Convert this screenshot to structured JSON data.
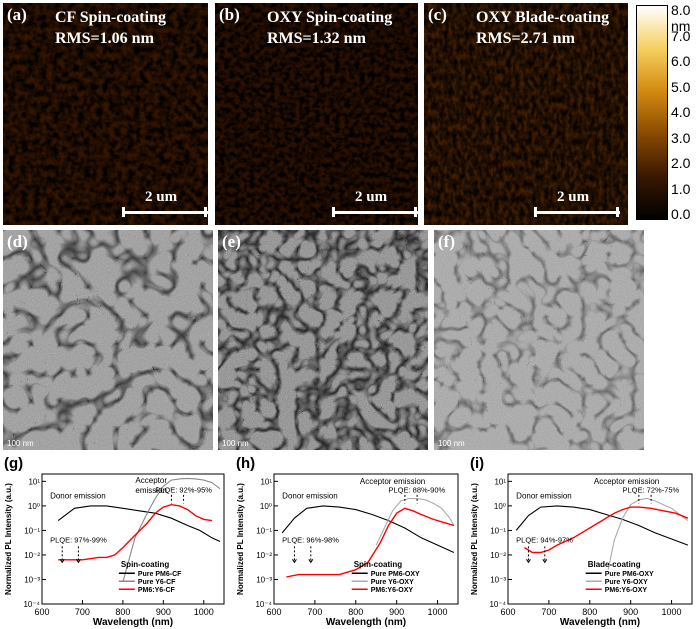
{
  "afm": [
    {
      "label": "(a)",
      "title": "CF Spin-coating",
      "rms": "RMS=1.06 nm",
      "scale": "2 um"
    },
    {
      "label": "(b)",
      "title": "OXY Spin-coating",
      "rms": "RMS=1.32 nm",
      "scale": "2 um"
    },
    {
      "label": "(c)",
      "title": "OXY Blade-coating",
      "rms": "RMS=2.71 nm",
      "scale": "2 um"
    }
  ],
  "colorbar": {
    "ticks": [
      "8.0 nm",
      "7.0",
      "6.0",
      "5.0",
      "4.0",
      "3.0",
      "2.0",
      "1.0",
      "0.0"
    ],
    "colors": [
      "#ffffff",
      "#f5d060",
      "#d48a10",
      "#8a4a00",
      "#3a1800",
      "#000000"
    ]
  },
  "tem": [
    {
      "label": "(d)",
      "scale": "100 nm"
    },
    {
      "label": "(e)",
      "scale": "100 nm"
    },
    {
      "label": "(f)",
      "scale": "100 nm"
    }
  ],
  "pl_axes": {
    "xlabel": "Wavelength (nm)",
    "ylabel": "Normalized PL Intensity (a.u.)"
  },
  "chart_data": [
    {
      "type": "line",
      "label": "(g)",
      "xlabel": "Wavelength (nm)",
      "ylabel": "Normalized PL Intensity (a.u.)",
      "xlim": [
        600,
        1050
      ],
      "ylim_log10": [
        -4,
        1.3
      ],
      "yscale": "log",
      "xticks": [
        "600",
        "700",
        "800",
        "900",
        "1000"
      ],
      "yticks": [
        "10⁻⁴",
        "10⁻³",
        "10⁻²",
        "10⁻¹",
        "10⁰",
        "10¹"
      ],
      "legend_title": "Spin-coating",
      "annotations": {
        "donor": "Donor emission",
        "acceptor": "Acceptor\nemission",
        "plqe_d": "PLQE: 97%-99%",
        "plqe_a": "PLQE: 92%-95%"
      },
      "series": [
        {
          "name": "Pure PM6-CF",
          "color": "#000000",
          "x": [
            640,
            680,
            720,
            760,
            800,
            840,
            880,
            920,
            960,
            990,
            1000,
            1020,
            1040
          ],
          "logy": [
            -0.6,
            -0.1,
            0.0,
            0.0,
            -0.1,
            -0.2,
            -0.3,
            -0.5,
            -0.8,
            -1.0,
            -1.1,
            -1.3,
            -1.45
          ]
        },
        {
          "name": "Pure Y6-CF",
          "color": "#888888",
          "x": [
            800,
            830,
            860,
            880,
            900,
            920,
            940,
            960,
            980,
            1000,
            1020,
            1040
          ],
          "logy": [
            -3.1,
            -1.3,
            -0.3,
            0.3,
            0.8,
            1.05,
            1.1,
            1.12,
            1.1,
            1.05,
            0.95,
            0.7
          ]
        },
        {
          "name": "PM6:Y6-CF",
          "color": "#ff0000",
          "x": [
            640,
            660,
            700,
            740,
            760,
            780,
            800,
            830,
            860,
            880,
            900,
            920,
            940,
            960,
            980,
            1000,
            1020
          ],
          "logy": [
            -2.2,
            -2.2,
            -2.2,
            -2.1,
            -2.1,
            -2.0,
            -1.7,
            -1.2,
            -0.7,
            -0.3,
            -0.05,
            0.05,
            0.0,
            -0.15,
            -0.4,
            -0.55,
            -0.6
          ]
        }
      ]
    },
    {
      "type": "line",
      "label": "(h)",
      "xlabel": "Wavelength (nm)",
      "ylabel": "Normalized PL Intensity (a.u.)",
      "xlim": [
        600,
        1050
      ],
      "ylim_log10": [
        -4,
        1.3
      ],
      "yscale": "log",
      "xticks": [
        "600",
        "700",
        "800",
        "900",
        "1000"
      ],
      "yticks": [
        "10⁻⁴",
        "10⁻³",
        "10⁻²",
        "10⁻¹",
        "10⁰",
        "10¹"
      ],
      "legend_title": "Spin-coating",
      "annotations": {
        "donor": "Donor emission",
        "acceptor": "Acceptor emission",
        "plqe_d": "PLQE: 96%-98%",
        "plqe_a": "PLQE: 88%-90%"
      },
      "series": [
        {
          "name": "Pure PM6-OXY",
          "color": "#000000",
          "x": [
            620,
            650,
            680,
            720,
            760,
            800,
            840,
            880,
            920,
            960,
            1000,
            1040
          ],
          "logy": [
            -1.1,
            -0.5,
            -0.1,
            0.0,
            -0.05,
            -0.15,
            -0.35,
            -0.6,
            -0.9,
            -1.3,
            -1.6,
            -1.9
          ]
        },
        {
          "name": "Pure Y6-OXY",
          "color": "#aaaaaa",
          "x": [
            850,
            870,
            890,
            910,
            930,
            950,
            970,
            990,
            1010,
            1030,
            1040
          ],
          "logy": [
            -1.6,
            -0.9,
            -0.2,
            0.2,
            0.3,
            0.3,
            0.25,
            0.1,
            -0.1,
            -0.5,
            -0.8
          ]
        },
        {
          "name": "PM6:Y6-OXY",
          "color": "#ff0000",
          "x": [
            630,
            660,
            700,
            760,
            800,
            830,
            860,
            880,
            900,
            920,
            940,
            960,
            990,
            1020,
            1040
          ],
          "logy": [
            -2.9,
            -2.8,
            -2.8,
            -2.8,
            -2.6,
            -2.3,
            -1.5,
            -0.8,
            -0.3,
            -0.1,
            -0.2,
            -0.35,
            -0.55,
            -0.7,
            -0.8
          ]
        }
      ]
    },
    {
      "type": "line",
      "label": "(i)",
      "xlabel": "Wavelength (nm)",
      "ylabel": "Normalized PL Intensity (a.u.)",
      "xlim": [
        600,
        1050
      ],
      "ylim_log10": [
        -4,
        1.3
      ],
      "yscale": "log",
      "xticks": [
        "600",
        "700",
        "800",
        "900",
        "1000"
      ],
      "yticks": [
        "10⁻⁴",
        "10⁻³",
        "10⁻²",
        "10⁻¹",
        "10⁰",
        "10¹"
      ],
      "legend_title": "Blade-coating",
      "annotations": {
        "donor": "Donor emission",
        "acceptor": "Acceptor emission",
        "plqe_d": "PLQE: 94%-97%",
        "plqe_a": "PLQE: 72%-75%"
      },
      "series": [
        {
          "name": "Pure PM6-OXY",
          "color": "#000000",
          "x": [
            620,
            650,
            680,
            720,
            760,
            800,
            840,
            880,
            920,
            960,
            1000,
            1040
          ],
          "logy": [
            -1.0,
            -0.4,
            -0.05,
            0.0,
            -0.05,
            -0.15,
            -0.35,
            -0.55,
            -0.8,
            -1.1,
            -1.35,
            -1.6
          ]
        },
        {
          "name": "Pure Y6-OXY",
          "color": "#aaaaaa",
          "x": [
            845,
            860,
            880,
            900,
            920,
            940,
            960,
            980,
            1000,
            1020,
            1040
          ],
          "logy": [
            -2.6,
            -1.4,
            -0.5,
            0.05,
            0.25,
            0.3,
            0.2,
            0.05,
            -0.1,
            -0.35,
            -0.6
          ]
        },
        {
          "name": "PM6:Y6-OXY",
          "color": "#ff0000",
          "x": [
            640,
            660,
            680,
            700,
            720,
            760,
            800,
            830,
            860,
            880,
            900,
            920,
            950,
            980,
            1010,
            1040
          ],
          "logy": [
            -1.7,
            -1.9,
            -1.9,
            -1.8,
            -1.6,
            -1.3,
            -0.9,
            -0.6,
            -0.3,
            -0.15,
            -0.05,
            -0.05,
            -0.1,
            -0.2,
            -0.3,
            -0.5
          ]
        }
      ]
    }
  ]
}
